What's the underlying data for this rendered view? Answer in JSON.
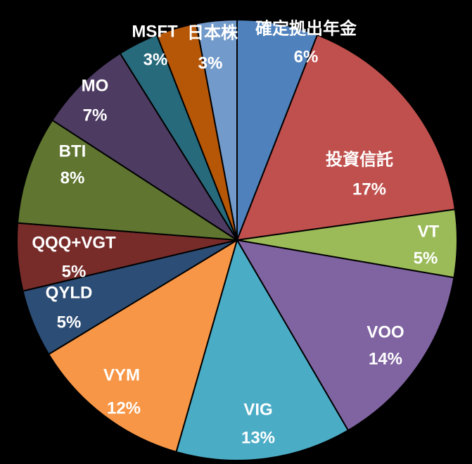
{
  "chart_data": {
    "type": "pie",
    "title": "",
    "start_angle_deg": 0,
    "direction": "clockwise",
    "slices": [
      {
        "label": "確定拠出年金",
        "value": 6,
        "value_label": "6%",
        "color": "#4f81bd"
      },
      {
        "label": "投資信託",
        "value": 17,
        "value_label": "17%",
        "color": "#c0504d"
      },
      {
        "label": "VT",
        "value": 5,
        "value_label": "5%",
        "color": "#9bbb59"
      },
      {
        "label": "VOO",
        "value": 14,
        "value_label": "14%",
        "color": "#8064a2"
      },
      {
        "label": "VIG",
        "value": 13,
        "value_label": "13%",
        "color": "#4bacc6"
      },
      {
        "label": "VYM",
        "value": 12,
        "value_label": "12%",
        "color": "#f79646"
      },
      {
        "label": "QYLD",
        "value": 5,
        "value_label": "5%",
        "color": "#2c4d75"
      },
      {
        "label": "QQQ+VGT",
        "value": 5,
        "value_label": "5%",
        "color": "#772c2a"
      },
      {
        "label": "BTI",
        "value": 8,
        "value_label": "8%",
        "color": "#5f7530"
      },
      {
        "label": "MO",
        "value": 7,
        "value_label": "7%",
        "color": "#4d3b62"
      },
      {
        "label": "MSFT",
        "value": 3,
        "value_label": "3%",
        "color": "#276a7c"
      },
      {
        "label": "日本株",
        "value": 3,
        "value_label": "3%",
        "color": "#b65708"
      },
      {
        "label": "",
        "value": 3,
        "value_label": "3%",
        "color": "#729aca"
      }
    ],
    "legend": "none",
    "background": "#000000",
    "border_color": "#000000"
  }
}
